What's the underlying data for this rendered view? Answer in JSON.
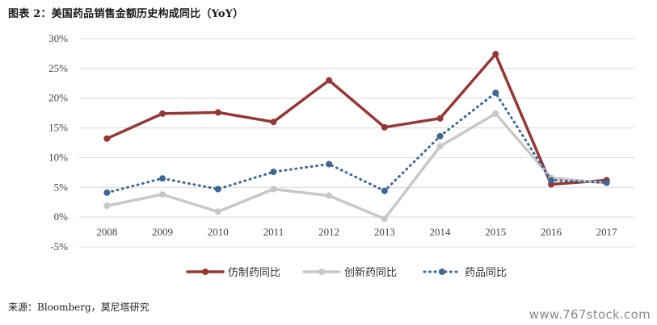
{
  "figure_title": "图表 2：美国药品销售金额历史构成同比（YoY）",
  "source_text": "来源：Bloomberg，莫尼塔研究",
  "watermark_text": "www.767stock.com",
  "chart_data": {
    "type": "line",
    "categories": [
      "2008",
      "2009",
      "2010",
      "2011",
      "2012",
      "2013",
      "2014",
      "2015",
      "2016",
      "2017"
    ],
    "ylim": [
      -5,
      30
    ],
    "yticks": [
      -5,
      0,
      5,
      10,
      15,
      20,
      25,
      30
    ],
    "ytick_labels": [
      "-5%",
      "0%",
      "5%",
      "10%",
      "15%",
      "20%",
      "25%",
      "30%"
    ],
    "grid": "horizontal",
    "legend_position": "bottom",
    "series": [
      {
        "name": "仿制药同比",
        "color": "#953735",
        "style": "solid",
        "values": [
          13.2,
          17.4,
          17.6,
          16.0,
          23.0,
          15.1,
          16.6,
          27.4,
          5.5,
          6.2
        ]
      },
      {
        "name": "创新药同比",
        "color": "#c8c8c8",
        "style": "solid",
        "values": [
          1.9,
          3.8,
          0.9,
          4.7,
          3.6,
          -0.3,
          11.9,
          17.4,
          6.6,
          5.7
        ]
      },
      {
        "name": "药品同比",
        "color": "#3f6793",
        "style": "dotted",
        "values": [
          4.1,
          6.5,
          4.7,
          7.6,
          8.9,
          4.4,
          13.6,
          20.9,
          6.2,
          5.8
        ]
      }
    ]
  }
}
